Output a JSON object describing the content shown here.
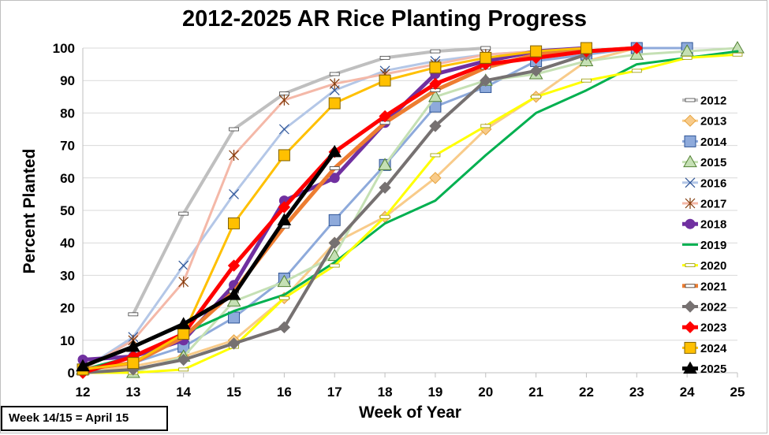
{
  "note": "Week 14/15 = April 15",
  "chart_data": {
    "type": "line",
    "title": "2012-2025 AR Rice Planting Progress",
    "xlabel": "Week of Year",
    "ylabel": "Percent Planted",
    "xlim": [
      12,
      25
    ],
    "ylim": [
      0,
      100
    ],
    "xticks": [
      12,
      13,
      14,
      15,
      16,
      17,
      18,
      19,
      20,
      21,
      22,
      23,
      24,
      25
    ],
    "yticks": [
      0,
      10,
      20,
      30,
      40,
      50,
      60,
      70,
      80,
      90,
      100
    ],
    "grid": true,
    "legend": "right",
    "series": [
      {
        "name": "2012",
        "color": "#bfbfbf",
        "marker": "dash",
        "width": 4,
        "points": [
          [
            13,
            18
          ],
          [
            14,
            49
          ],
          [
            15,
            75
          ],
          [
            16,
            86
          ],
          [
            17,
            92
          ],
          [
            18,
            97
          ],
          [
            19,
            99
          ],
          [
            20,
            100
          ]
        ]
      },
      {
        "name": "2013",
        "color": "#f8cb8a",
        "marker": "diamond",
        "width": 3,
        "points": [
          [
            12,
            0
          ],
          [
            13,
            2
          ],
          [
            14,
            5
          ],
          [
            15,
            10
          ],
          [
            16,
            23
          ],
          [
            17,
            40
          ],
          [
            18,
            48
          ],
          [
            19,
            60
          ],
          [
            20,
            75
          ],
          [
            21,
            85
          ],
          [
            22,
            96
          ],
          [
            23,
            100
          ]
        ]
      },
      {
        "name": "2014",
        "color": "#8eaadb",
        "marker": "square",
        "width": 3,
        "points": [
          [
            12,
            1
          ],
          [
            13,
            3
          ],
          [
            14,
            8
          ],
          [
            15,
            17
          ],
          [
            16,
            29
          ],
          [
            17,
            47
          ],
          [
            18,
            64
          ],
          [
            19,
            82
          ],
          [
            20,
            88
          ],
          [
            21,
            96
          ],
          [
            22,
            98
          ],
          [
            23,
            100
          ],
          [
            24,
            100
          ]
        ]
      },
      {
        "name": "2015",
        "color": "#c5e0b4",
        "marker": "triangle",
        "width": 3,
        "points": [
          [
            12,
            1
          ],
          [
            13,
            0
          ],
          [
            14,
            5
          ],
          [
            15,
            22
          ],
          [
            16,
            28
          ],
          [
            17,
            36
          ],
          [
            18,
            64
          ],
          [
            19,
            85
          ],
          [
            20,
            90
          ],
          [
            21,
            92
          ],
          [
            22,
            96
          ],
          [
            23,
            98
          ],
          [
            24,
            99
          ],
          [
            25,
            100
          ]
        ]
      },
      {
        "name": "2016",
        "color": "#b4c7e7",
        "marker": "x",
        "width": 3,
        "points": [
          [
            12,
            1
          ],
          [
            13,
            11
          ],
          [
            14,
            33
          ],
          [
            15,
            55
          ],
          [
            16,
            75
          ],
          [
            17,
            87
          ],
          [
            18,
            93
          ],
          [
            19,
            96
          ],
          [
            20,
            98
          ],
          [
            21,
            99
          ],
          [
            22,
            100
          ]
        ]
      },
      {
        "name": "2017",
        "color": "#f4b8a8",
        "marker": "star",
        "width": 3,
        "points": [
          [
            12,
            1
          ],
          [
            13,
            10
          ],
          [
            14,
            28
          ],
          [
            15,
            67
          ],
          [
            16,
            84
          ],
          [
            17,
            89
          ],
          [
            18,
            92
          ],
          [
            19,
            95
          ],
          [
            20,
            98
          ],
          [
            21,
            99
          ],
          [
            22,
            100
          ]
        ]
      },
      {
        "name": "2018",
        "color": "#7030a0",
        "marker": "circle",
        "width": 5,
        "points": [
          [
            12,
            4
          ],
          [
            13,
            5
          ],
          [
            14,
            10
          ],
          [
            15,
            27
          ],
          [
            16,
            53
          ],
          [
            17,
            60
          ],
          [
            18,
            77
          ],
          [
            19,
            92
          ],
          [
            20,
            96
          ],
          [
            21,
            99
          ],
          [
            22,
            100
          ]
        ]
      },
      {
        "name": "2019",
        "color": "#00b050",
        "marker": "none",
        "width": 3,
        "points": [
          [
            12,
            1
          ],
          [
            13,
            5
          ],
          [
            14,
            12
          ],
          [
            15,
            19
          ],
          [
            16,
            24
          ],
          [
            17,
            34
          ],
          [
            18,
            46
          ],
          [
            19,
            53
          ],
          [
            20,
            67
          ],
          [
            21,
            80
          ],
          [
            22,
            87
          ],
          [
            23,
            95
          ],
          [
            24,
            97
          ],
          [
            25,
            99
          ]
        ]
      },
      {
        "name": "2020",
        "color": "#ffff00",
        "marker": "dash",
        "width": 3,
        "points": [
          [
            12,
            0
          ],
          [
            13,
            0
          ],
          [
            14,
            1
          ],
          [
            15,
            8
          ],
          [
            16,
            23
          ],
          [
            17,
            33
          ],
          [
            18,
            48
          ],
          [
            19,
            67
          ],
          [
            20,
            76
          ],
          [
            21,
            85
          ],
          [
            22,
            90
          ],
          [
            23,
            93
          ],
          [
            24,
            97
          ],
          [
            25,
            98
          ]
        ]
      },
      {
        "name": "2021",
        "color": "#ed7d31",
        "marker": "dash",
        "width": 5,
        "points": [
          [
            12,
            1
          ],
          [
            13,
            3
          ],
          [
            14,
            11
          ],
          [
            15,
            25
          ],
          [
            16,
            45
          ],
          [
            17,
            63
          ],
          [
            18,
            77
          ],
          [
            19,
            87
          ],
          [
            20,
            94
          ],
          [
            21,
            98
          ],
          [
            22,
            99
          ],
          [
            23,
            100
          ]
        ]
      },
      {
        "name": "2022",
        "color": "#767171",
        "marker": "diamond",
        "width": 4,
        "points": [
          [
            12,
            0
          ],
          [
            13,
            1
          ],
          [
            14,
            4
          ],
          [
            15,
            9
          ],
          [
            16,
            14
          ],
          [
            17,
            40
          ],
          [
            18,
            57
          ],
          [
            19,
            76
          ],
          [
            20,
            90
          ],
          [
            21,
            93
          ],
          [
            22,
            98
          ]
        ]
      },
      {
        "name": "2023",
        "color": "#ff0000",
        "marker": "diamond",
        "width": 5,
        "points": [
          [
            12,
            0
          ],
          [
            13,
            5
          ],
          [
            14,
            12
          ],
          [
            15,
            33
          ],
          [
            16,
            51
          ],
          [
            17,
            68
          ],
          [
            18,
            79
          ],
          [
            19,
            89
          ],
          [
            20,
            95
          ],
          [
            21,
            97
          ],
          [
            22,
            99
          ],
          [
            23,
            100
          ]
        ]
      },
      {
        "name": "2024",
        "color": "#ffc000",
        "marker": "square",
        "width": 3,
        "points": [
          [
            12,
            1
          ],
          [
            13,
            3
          ],
          [
            14,
            12
          ],
          [
            15,
            46
          ],
          [
            16,
            67
          ],
          [
            17,
            83
          ],
          [
            18,
            90
          ],
          [
            19,
            94
          ],
          [
            20,
            97
          ],
          [
            21,
            99
          ],
          [
            22,
            100
          ]
        ]
      },
      {
        "name": "2025",
        "color": "#000000",
        "marker": "triangle",
        "width": 5,
        "points": [
          [
            12,
            2
          ],
          [
            13,
            8
          ],
          [
            14,
            15
          ],
          [
            15,
            24
          ],
          [
            16,
            47
          ],
          [
            17,
            68
          ]
        ]
      }
    ]
  }
}
